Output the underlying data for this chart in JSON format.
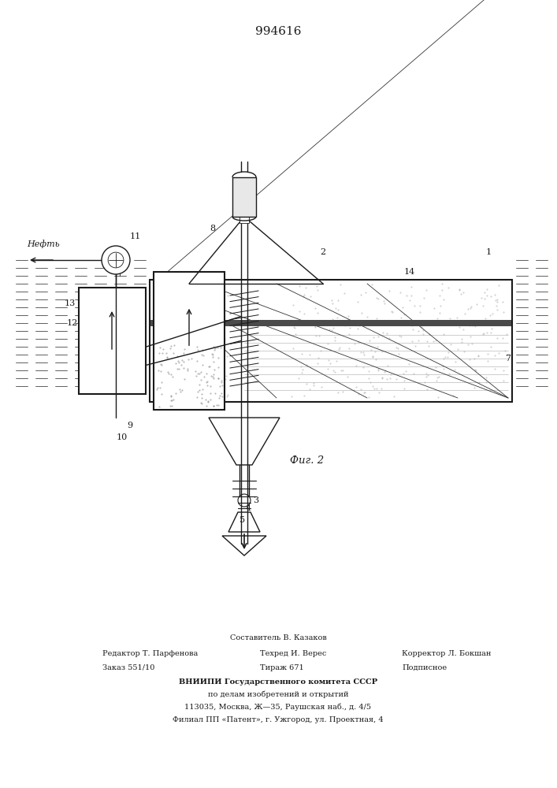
{
  "title": "994616",
  "fig_caption": "Фиг. 2",
  "background_color": "#ffffff",
  "line_color": "#1a1a1a",
  "footer_line1": "Составитель В. Казаков",
  "footer_line2_left": "Редактор Т. Парфенова",
  "footer_line2_mid": "Техред И. Верес",
  "footer_line2_right": "Корректор Л. Бокшан",
  "footer_line3_left": "Заказ 551/10",
  "footer_line3_mid": "Тираж 671",
  "footer_line3_right": "Подписное",
  "footer_line4": "ВНИИПИ Государственного комитета СССР",
  "footer_line5": "по делам изобретений и открытий",
  "footer_line6": "113035, Москва, Ж—35, Раушская наб., д. 4/5",
  "footer_line7": "Филиал ПП «Патент», г. Ужгород, ул. Проектная, 4"
}
